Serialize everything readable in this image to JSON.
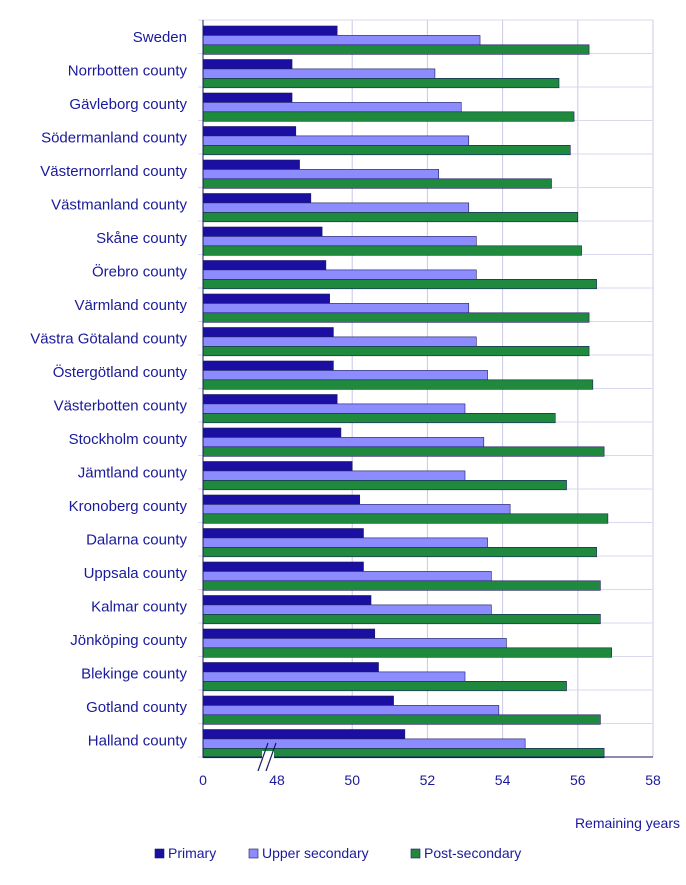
{
  "chart_data": {
    "type": "bar",
    "orientation": "horizontal",
    "xlabel": "Remaining years",
    "x_ticks": [
      "0",
      "48",
      "50",
      "52",
      "54",
      "56",
      "58"
    ],
    "axis_break": [
      0,
      46
    ],
    "xlim": [
      46,
      58
    ],
    "grid": true,
    "legend_position": "bottom",
    "categories": [
      "Sweden",
      "Norrbotten county",
      "Gävleborg county",
      "Södermanland county",
      "Västernorrland county",
      "Västmanland county",
      "Skåne county",
      "Örebro county",
      "Värmland county",
      "Västra Götaland county",
      "Östergötland county",
      "Västerbotten county",
      "Stockholm county",
      "Jämtland county",
      "Kronoberg county",
      "Dalarna county",
      "Uppsala county",
      "Kalmar county",
      "Jönköping county",
      "Blekinge county",
      "Gotland county",
      "Halland county"
    ],
    "series": [
      {
        "name": "Primary",
        "color": "#1a0fa0",
        "values": [
          49.6,
          48.4,
          48.4,
          48.5,
          48.6,
          48.9,
          49.2,
          49.3,
          49.4,
          49.5,
          49.5,
          49.6,
          49.7,
          50.0,
          50.2,
          50.3,
          50.3,
          50.5,
          50.6,
          50.7,
          51.1,
          51.4
        ]
      },
      {
        "name": "Upper secondary",
        "color": "#8c8cff",
        "values": [
          53.4,
          52.2,
          52.9,
          53.1,
          52.3,
          53.1,
          53.3,
          53.3,
          53.1,
          53.3,
          53.6,
          53.0,
          53.5,
          53.0,
          54.2,
          53.6,
          53.7,
          53.7,
          54.1,
          53.0,
          53.9,
          54.6
        ]
      },
      {
        "name": "Post-secondary",
        "color": "#1f8a3e",
        "values": [
          56.3,
          55.5,
          55.9,
          55.8,
          55.3,
          56.0,
          56.1,
          56.5,
          56.3,
          56.3,
          56.4,
          55.4,
          56.7,
          55.7,
          56.8,
          56.5,
          56.6,
          56.6,
          56.9,
          55.7,
          56.6,
          56.7
        ]
      }
    ]
  }
}
